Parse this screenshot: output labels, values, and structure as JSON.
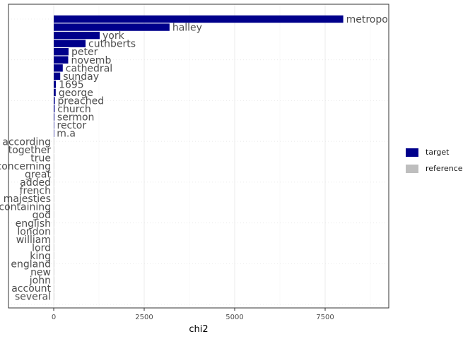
{
  "chart_data": {
    "type": "bar",
    "orientation": "horizontal",
    "xlabel": "chi2",
    "ylabel": "",
    "xlim": [
      -1250,
      9200
    ],
    "xticks": [
      0,
      2500,
      5000,
      7500
    ],
    "xtick_labels": [
      "0",
      "2500",
      "5000",
      "7500"
    ],
    "grid": true,
    "legend_position": "right",
    "legend": [
      {
        "name": "target",
        "color": "#00008B"
      },
      {
        "name": "reference",
        "color": "#BEBEBE"
      }
    ],
    "series": [
      {
        "name": "target",
        "color": "#00008B",
        "categories": [
          "metropo",
          "halley",
          "york",
          "cuthberts",
          "peter",
          "novemb",
          "cathedral",
          "sunday",
          "1695",
          "george",
          "preached",
          "church",
          "sermon",
          "rector",
          "m.a"
        ],
        "values": [
          8000,
          3200,
          1270,
          880,
          410,
          400,
          250,
          180,
          60,
          55,
          30,
          25,
          18,
          10,
          5
        ]
      },
      {
        "name": "reference",
        "color": "#BEBEBE",
        "categories": [
          "according",
          "together",
          "true",
          "concerning",
          "great",
          "added",
          "french",
          "majesties",
          "containing",
          "god",
          "english",
          "london",
          "william",
          "lord",
          "king",
          "england",
          "new",
          "john",
          "account",
          "several"
        ],
        "values": [
          2,
          2,
          2,
          2,
          2,
          2,
          2,
          2,
          2,
          2,
          2,
          2,
          2,
          2,
          3,
          3,
          3,
          3,
          3,
          3
        ]
      }
    ]
  }
}
